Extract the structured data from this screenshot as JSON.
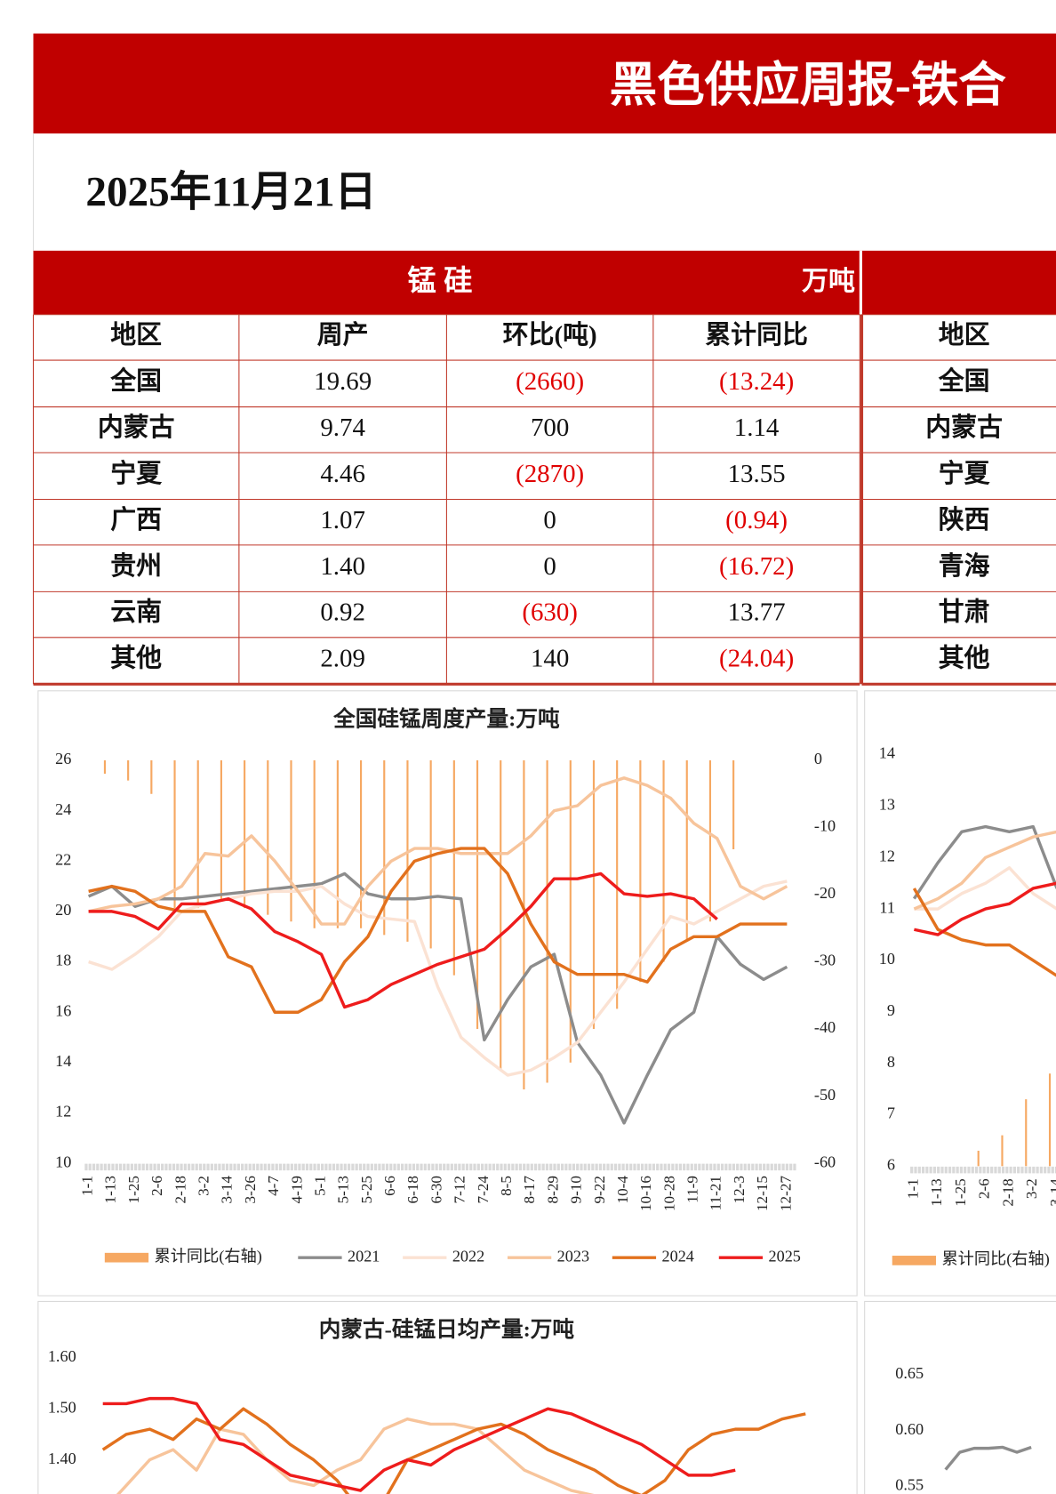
{
  "header": {
    "title": "黑色供应周报-铁合",
    "date": "2025年11月21日"
  },
  "table": {
    "left": {
      "title": "锰硅",
      "unit": "万吨",
      "columns": [
        "地区",
        "周产",
        "环比(吨)",
        "累计同比"
      ],
      "rows": [
        [
          "全国",
          "19.69",
          "(2660)",
          "(13.24)"
        ],
        [
          "内蒙古",
          "9.74",
          "700",
          "1.14"
        ],
        [
          "宁夏",
          "4.46",
          "(2870)",
          "13.55"
        ],
        [
          "广西",
          "1.07",
          "0",
          "(0.94)"
        ],
        [
          "贵州",
          "1.40",
          "0",
          "(16.72)"
        ],
        [
          "云南",
          "0.92",
          "(630)",
          "13.77"
        ],
        [
          "其他",
          "2.09",
          "140",
          "(24.04)"
        ]
      ]
    },
    "right": {
      "columns": [
        "地区"
      ],
      "rows": [
        [
          "全国"
        ],
        [
          "内蒙古"
        ],
        [
          "宁夏"
        ],
        [
          "陕西"
        ],
        [
          "青海"
        ],
        [
          "甘肃"
        ],
        [
          "其他"
        ]
      ]
    }
  },
  "chart_data": [
    {
      "type": "line",
      "title": "全国硅锰周度产量:万吨",
      "categories": [
        "1-1",
        "1-13",
        "1-25",
        "2-6",
        "2-18",
        "3-2",
        "3-14",
        "3-26",
        "4-7",
        "4-19",
        "5-1",
        "5-13",
        "5-25",
        "6-6",
        "6-18",
        "6-30",
        "7-12",
        "7-24",
        "8-5",
        "8-17",
        "8-29",
        "9-10",
        "9-22",
        "10-4",
        "10-16",
        "10-28",
        "11-9",
        "11-21",
        "12-3",
        "12-15",
        "12-27"
      ],
      "ylim": [
        10,
        26
      ],
      "yticks": [
        10,
        12,
        14,
        16,
        18,
        20,
        22,
        24,
        26
      ],
      "y2lim": [
        -60,
        0
      ],
      "y2ticks": [
        -60,
        -50,
        -40,
        -30,
        -20,
        -10,
        0
      ],
      "series": [
        {
          "name": "累计同比(右轴)",
          "type": "bar",
          "axis": "y2",
          "color": "#f6a862",
          "values": [
            -2,
            -3,
            -5,
            -22,
            -22,
            -21,
            -22,
            -23,
            -24,
            -25,
            -25,
            -25,
            -26,
            -27,
            -28,
            -32,
            -40,
            -46,
            -49,
            -48,
            -45,
            -40,
            -37,
            -33,
            -30,
            -27,
            -24,
            -13.24,
            null,
            null,
            null
          ]
        },
        {
          "name": "2021",
          "color": "#8c8c8c",
          "values": [
            20.6,
            21.0,
            20.2,
            20.5,
            20.5,
            20.6,
            20.7,
            20.8,
            20.9,
            21.0,
            21.1,
            21.5,
            20.7,
            20.5,
            20.5,
            20.6,
            20.5,
            14.9,
            16.5,
            17.8,
            18.3,
            14.8,
            13.5,
            11.6,
            13.5,
            15.3,
            16.0,
            19.0,
            17.9,
            17.3,
            17.8
          ]
        },
        {
          "name": "2022",
          "color": "#fbe2d3",
          "values": [
            18.0,
            17.7,
            18.3,
            19.0,
            20.0,
            20.3,
            20.5,
            20.7,
            20.8,
            20.8,
            21.0,
            20.3,
            19.8,
            19.7,
            19.6,
            17.0,
            15.0,
            14.2,
            13.5,
            13.7,
            14.2,
            14.8,
            16.0,
            17.2,
            18.5,
            19.8,
            19.5,
            20.0,
            20.5,
            21.0,
            21.2
          ]
        },
        {
          "name": "2023",
          "color": "#f7c49b",
          "values": [
            20.0,
            20.2,
            20.3,
            20.5,
            21.0,
            22.3,
            22.2,
            23.0,
            22.0,
            20.8,
            19.5,
            19.5,
            21.0,
            22.0,
            22.5,
            22.5,
            22.3,
            22.3,
            22.3,
            23.0,
            24.0,
            24.2,
            25.0,
            25.3,
            25.0,
            24.5,
            23.5,
            22.9,
            21.0,
            20.5,
            21.0
          ]
        },
        {
          "name": "2024",
          "color": "#e2711d",
          "values": [
            20.8,
            21.0,
            20.8,
            20.2,
            20.0,
            20.0,
            18.2,
            17.8,
            16.0,
            16.0,
            16.5,
            18.0,
            19.0,
            20.8,
            22.0,
            22.3,
            22.5,
            22.5,
            21.5,
            19.5,
            18.0,
            17.5,
            17.5,
            17.5,
            17.2,
            18.5,
            19.0,
            19.0,
            19.5,
            19.5,
            19.5
          ]
        },
        {
          "name": "2025",
          "color": "#ee1c1c",
          "values": [
            20.0,
            20.0,
            19.8,
            19.3,
            20.3,
            20.3,
            20.5,
            20.1,
            19.2,
            18.8,
            18.3,
            16.2,
            16.5,
            17.1,
            17.5,
            17.9,
            18.2,
            18.5,
            19.3,
            20.2,
            21.3,
            21.3,
            21.5,
            20.7,
            20.6,
            20.7,
            20.5,
            19.69,
            null,
            null,
            null
          ]
        }
      ]
    },
    {
      "type": "line",
      "categories": [
        "1-1",
        "1-13",
        "1-25",
        "2-6",
        "2-18",
        "3-2",
        "3-14"
      ],
      "ylim": [
        6,
        14
      ],
      "yticks": [
        6,
        7,
        8,
        9,
        10,
        11,
        12,
        13,
        14
      ],
      "series": [
        {
          "name": "累计同比(右轴)",
          "type": "bar",
          "color": "#f6a862",
          "values": [
            null,
            null,
            6.3,
            6.6,
            7.3,
            7.8,
            8.5
          ]
        },
        {
          "name": "2021",
          "color": "#8c8c8c",
          "values": [
            11.2,
            11.9,
            12.5,
            12.6,
            12.5,
            12.6,
            11.4
          ]
        },
        {
          "name": "2022",
          "color": "#fbe2d3",
          "values": [
            11.0,
            11.0,
            11.3,
            11.5,
            11.8,
            11.3,
            11.0
          ]
        },
        {
          "name": "2023",
          "color": "#f7c49b",
          "values": [
            11.0,
            11.2,
            11.5,
            12.0,
            12.2,
            12.4,
            12.5
          ]
        },
        {
          "name": "2024",
          "color": "#e2711d",
          "values": [
            11.4,
            10.6,
            10.4,
            10.3,
            10.3,
            10.0,
            9.7
          ]
        },
        {
          "name": "2025",
          "color": "#ee1c1c",
          "values": [
            10.6,
            10.5,
            10.8,
            11.0,
            11.1,
            11.4,
            11.5
          ]
        }
      ]
    },
    {
      "type": "line",
      "title": "内蒙古-硅锰日均产量:万吨",
      "ylim": [
        1.3,
        1.6
      ],
      "yticks": [
        {
          "value": 1.4,
          "label": "1.40"
        },
        {
          "value": 1.5,
          "label": "1.50"
        },
        {
          "value": 1.6,
          "label": "1.60"
        }
      ],
      "series": [
        {
          "color": "#f7c49b",
          "values": [
            1.3,
            1.35,
            1.4,
            1.42,
            1.38,
            1.46,
            1.45,
            1.4,
            1.36,
            1.35,
            1.38,
            1.4,
            1.46,
            1.48,
            1.47,
            1.47,
            1.46,
            1.42,
            1.38,
            1.36,
            1.34,
            1.33
          ]
        },
        {
          "color": "#e2711d",
          "values": [
            1.42,
            1.45,
            1.46,
            1.44,
            1.48,
            1.46,
            1.5,
            1.47,
            1.43,
            1.4,
            1.36,
            1.3,
            1.32,
            1.4,
            1.42,
            1.44,
            1.46,
            1.47,
            1.45,
            1.42,
            1.4,
            1.38,
            1.35,
            1.33,
            1.36,
            1.42,
            1.45,
            1.46,
            1.46,
            1.48,
            1.49
          ]
        },
        {
          "color": "#ee1c1c",
          "values": [
            1.51,
            1.51,
            1.52,
            1.52,
            1.51,
            1.44,
            1.43,
            1.4,
            1.37,
            1.36,
            1.35,
            1.34,
            1.38,
            1.4,
            1.39,
            1.42,
            1.44,
            1.46,
            1.48,
            1.5,
            1.49,
            1.47,
            1.45,
            1.43,
            1.4,
            1.37,
            1.37,
            1.38
          ]
        }
      ]
    },
    {
      "type": "line",
      "ylim": [
        0.55,
        0.65
      ],
      "yticks": [
        {
          "value": 0.55,
          "label": "0.55"
        },
        {
          "value": 0.6,
          "label": "0.60"
        },
        {
          "value": 0.65,
          "label": "0.65"
        }
      ],
      "series": [
        {
          "color": "#8c8c8c",
          "values": [
            0.565,
            0.5805,
            0.584,
            0.584,
            0.585,
            0.5805,
            0.585
          ]
        }
      ]
    }
  ]
}
